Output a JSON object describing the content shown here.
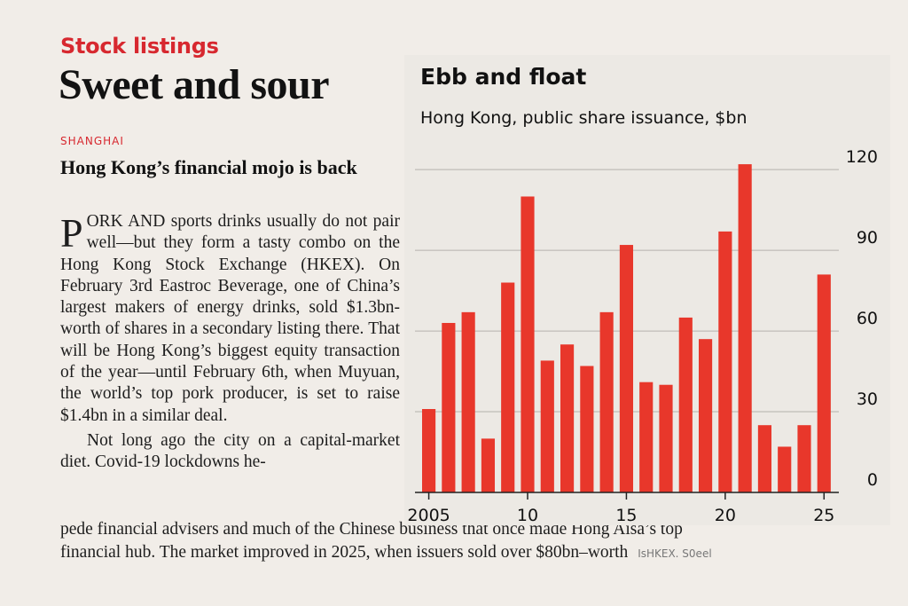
{
  "article": {
    "section": "Stock listings",
    "headline": "Sweet and sour",
    "dateline": "SHANGHAI",
    "deck": "Hong Kong’s financial mojo is back",
    "dropcap": "P",
    "para1_rest": "ORK AND sports drinks usually do not pair well—but they form a tasty combo on the Hong Kong Stock Exchange (HKEX). On February 3rd Eastroc Beverage, one of China’s largest makers of energy drinks, sold $1.3bn-worth of shares in a secondary listing there. That will be Hong Kong’s biggest equity transaction of the year—until February 6th, when Muyuan, the world’s top pork producer, is set to raise $1.4bn in a similar deal.",
    "para2_start": "Not long ago the city on a capital-market diet. Covid-19 lockdowns he-",
    "line_full_1": "pede financial advisers and much  of the Chinese business that once made Hong Aisa’s top",
    "line_full_2": "financial hub. The market improved in 2025, when issuers sold over $80bn–worth",
    "credit": "IsHKEX. S0eel"
  },
  "chart_data": {
    "type": "bar",
    "title": "Ebb and float",
    "subtitle": "Hong Kong, public share issuance, $bn",
    "x": [
      2005,
      2006,
      2007,
      2008,
      2009,
      2010,
      2011,
      2012,
      2013,
      2014,
      2015,
      2016,
      2017,
      2018,
      2019,
      2020,
      2021,
      2022,
      2023,
      2024,
      2025
    ],
    "values": [
      31,
      63,
      67,
      20,
      78,
      110,
      49,
      55,
      47,
      67,
      92,
      41,
      40,
      65,
      57,
      97,
      122,
      25,
      17,
      25,
      81
    ],
    "x_tick_labels": [
      "2005",
      "10",
      "15",
      "20",
      "25"
    ],
    "y_ticks": [
      0,
      30,
      60,
      90,
      120
    ],
    "ylim": [
      0,
      125
    ],
    "y_axis_side": "right",
    "grid": true,
    "bar_color": "#e8372b"
  }
}
